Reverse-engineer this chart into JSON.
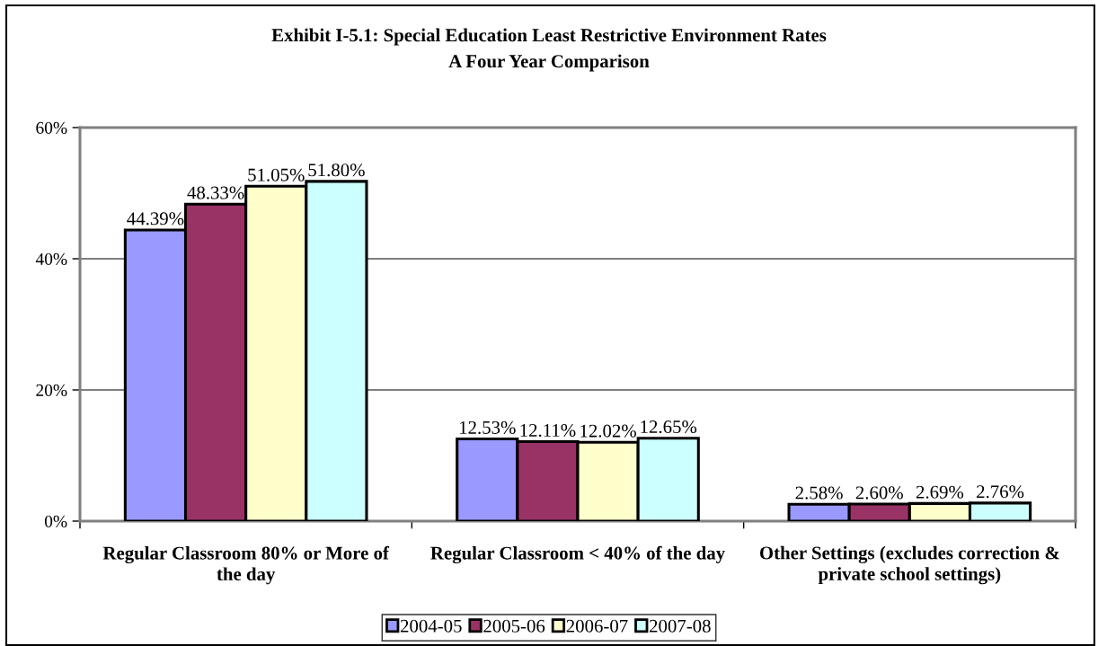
{
  "chart_data": {
    "type": "bar",
    "title": "Exhibit I-5.1: Special Education Least Restrictive Environment Rates",
    "subtitle": "A Four Year Comparison",
    "categories": [
      "Regular Classroom 80% or More of the day",
      "Regular Classroom < 40% of the day",
      "Other Settings (excludes correction & private school settings)"
    ],
    "series": [
      {
        "name": "2004-05",
        "color": "#9999ff",
        "values": [
          44.39,
          12.53,
          2.58
        ],
        "value_labels": [
          "44.39%",
          "12.53%",
          "2.58%"
        ]
      },
      {
        "name": "2005-06",
        "color": "#993366",
        "values": [
          48.33,
          12.11,
          2.6
        ],
        "value_labels": [
          "48.33%",
          "12.11%",
          "2.60%"
        ]
      },
      {
        "name": "2006-07",
        "color": "#ffffcc",
        "values": [
          51.05,
          12.02,
          2.69
        ],
        "value_labels": [
          "51.05%",
          "12.02%",
          "2.69%"
        ]
      },
      {
        "name": "2007-08",
        "color": "#ccffff",
        "values": [
          51.8,
          12.65,
          2.76
        ],
        "value_labels": [
          "51.80%",
          "12.65%",
          "2.76%"
        ]
      }
    ],
    "ylim": [
      0,
      60
    ],
    "yticks": [
      {
        "value": 0,
        "label": "0%"
      },
      {
        "value": 20,
        "label": "20%"
      },
      {
        "value": 40,
        "label": "40%"
      },
      {
        "value": 60,
        "label": "60%"
      }
    ],
    "grid": "y",
    "legend": "bottom"
  }
}
